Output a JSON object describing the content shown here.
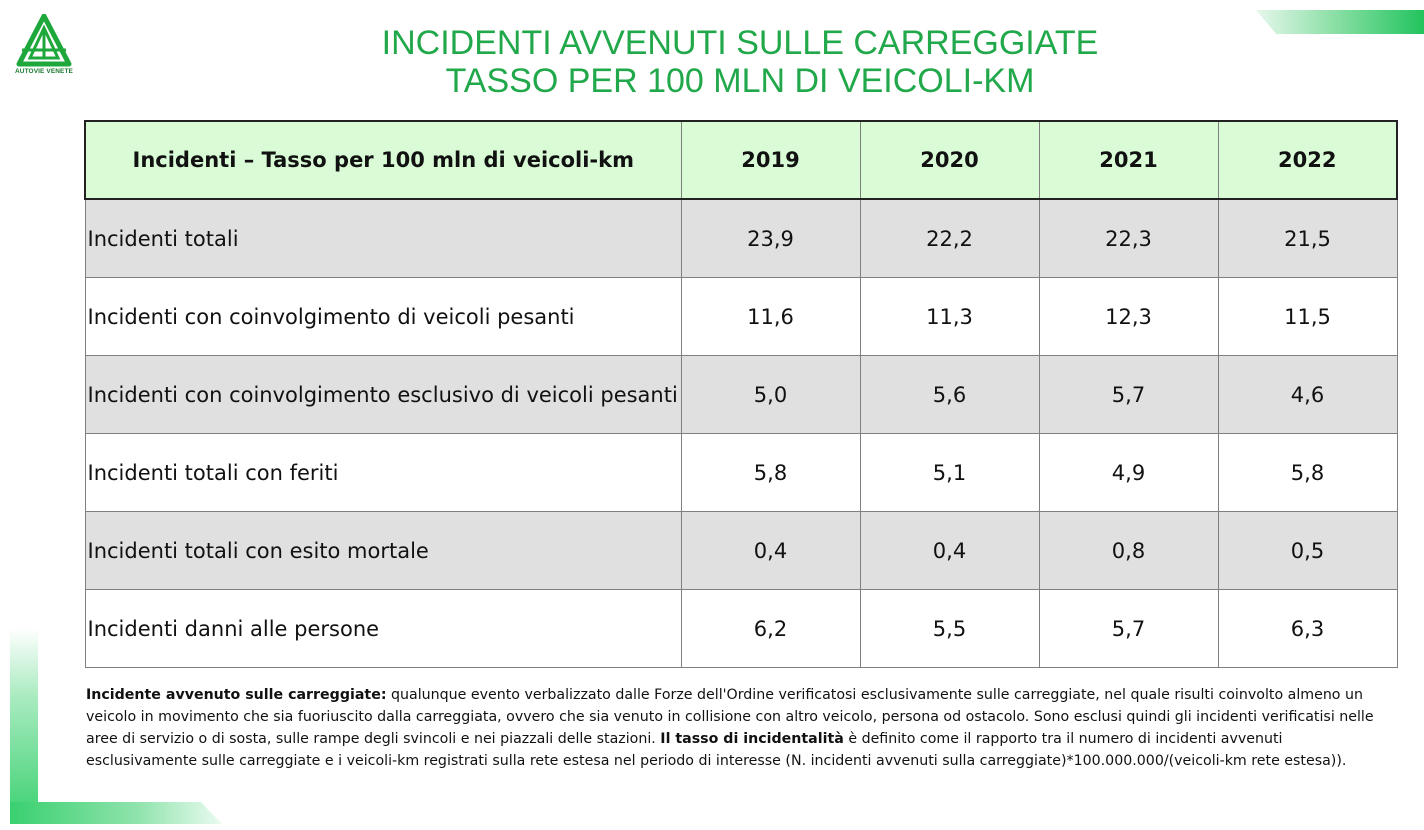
{
  "logo": {
    "text": "AUTOVIE VENETE",
    "color": "#1ea83c"
  },
  "title": {
    "line1": "INCIDENTI AVVENUTI SULLE CARREGGIATE",
    "line2": "TASSO PER 100 MLN DI VEICOLI-KM"
  },
  "table": {
    "header": {
      "label": "Incidenti – Tasso per 100 mln di veicoli-km",
      "years": [
        "2019",
        "2020",
        "2021",
        "2022"
      ]
    },
    "rows": [
      {
        "label": "Incidenti totali",
        "values": [
          "23,9",
          "22,2",
          "22,3",
          "21,5"
        ]
      },
      {
        "label": "Incidenti con coinvolgimento di veicoli pesanti",
        "values": [
          "11,6",
          "11,3",
          "12,3",
          "11,5"
        ]
      },
      {
        "label": "Incidenti con coinvolgimento esclusivo di veicoli pesanti",
        "values": [
          "5,0",
          "5,6",
          "5,7",
          "4,6"
        ]
      },
      {
        "label": "Incidenti totali con feriti",
        "values": [
          "5,8",
          "5,1",
          "4,9",
          "5,8"
        ]
      },
      {
        "label": "Incidenti totali con esito mortale",
        "values": [
          "0,4",
          "0,4",
          "0,8",
          "0,5"
        ]
      },
      {
        "label": "Incidenti danni alle persone",
        "values": [
          "6,2",
          "5,5",
          "5,7",
          "6,3"
        ]
      }
    ]
  },
  "footnote": {
    "term1": "Incidente avvenuto sulle carreggiate:",
    "text1": " qualunque evento verbalizzato dalle Forze dell'Ordine verificatosi esclusivamente sulle carreggiate, nel quale risulti coinvolto almeno un veicolo in movimento che sia fuoriuscito dalla carreggiata, ovvero che sia venuto in collisione con altro veicolo, persona od ostacolo. Sono esclusi quindi gli incidenti verificatisi nelle aree di servizio o di sosta, sulle rampe degli svincoli e nei piazzali delle stazioni. ",
    "term2": "Il tasso di incidentalità",
    "text2": " è definito come il rapporto tra il numero di incidenti avvenuti esclusivamente sulle carreggiate e i veicoli-km registrati sulla rete estesa nel periodo di interesse (N. incidenti avvenuti sulla carreggiate)*100.000.000/(veicoli-km rete estesa))."
  },
  "colors": {
    "title": "#21a84a",
    "header_bg": "#d9fbd6",
    "row_shaded": "#e0e0e0",
    "accent_green": "#22c45e"
  }
}
